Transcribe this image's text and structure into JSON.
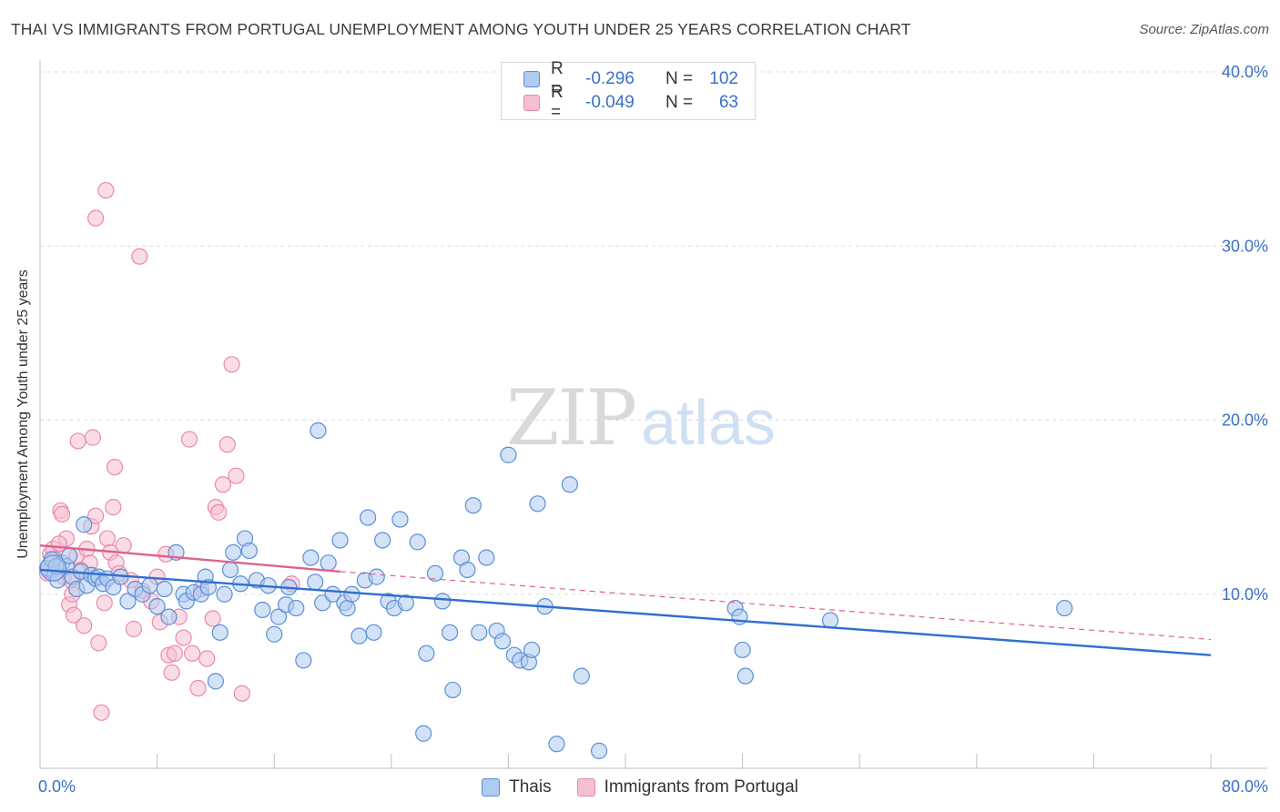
{
  "title": "THAI VS IMMIGRANTS FROM PORTUGAL UNEMPLOYMENT AMONG YOUTH UNDER 25 YEARS CORRELATION CHART",
  "source": "Source: ZipAtlas.com",
  "watermark": {
    "zip": "ZIP",
    "atlas": "atlas"
  },
  "legend": {
    "rows": [
      {
        "r_label": "R =",
        "r_value": "-0.296",
        "n_label": "N =",
        "n_value": "102"
      },
      {
        "r_label": "R =",
        "r_value": "-0.049",
        "n_label": "N =",
        "n_value": "63"
      }
    ],
    "bottom": [
      "Thais",
      "Immigrants from Portugal"
    ]
  },
  "colors": {
    "thais_fill": "#aecbf0",
    "thais_stroke": "#5b8fd6",
    "thais_line": "#2f6fcf",
    "portugal_fill": "#f6bfd1",
    "portugal_stroke": "#e88aab",
    "portugal_line": "#e0608c",
    "axis_text": "#3a70c7",
    "grid": "#dddddd"
  },
  "chart_data": {
    "type": "scatter",
    "title": "THAI VS IMMIGRANTS FROM PORTUGAL UNEMPLOYMENT AMONG YOUTH UNDER 25 YEARS CORRELATION CHART",
    "xlabel": "",
    "ylabel": "Unemployment Among Youth under 25 years",
    "xlim": [
      0,
      80
    ],
    "ylim": [
      0,
      40
    ],
    "x_tick_labels": [
      "0.0%",
      "80.0%"
    ],
    "y_ticks": [
      10,
      20,
      30,
      40
    ],
    "y_tick_labels": [
      "10.0%",
      "20.0%",
      "30.0%",
      "40.0%"
    ],
    "grid": true,
    "series": [
      {
        "name": "Thais",
        "r": -0.296,
        "n": 102,
        "trend": {
          "x0": 0,
          "y0": 11.4,
          "x1": 80,
          "y1": 6.5
        },
        "points": [
          [
            0.5,
            11.5
          ],
          [
            0.8,
            12.0
          ],
          [
            1.0,
            11.2
          ],
          [
            1.2,
            10.8
          ],
          [
            1.5,
            11.8
          ],
          [
            1.8,
            11.6
          ],
          [
            2.0,
            12.2
          ],
          [
            2.2,
            11.0
          ],
          [
            2.5,
            10.3
          ],
          [
            2.8,
            11.3
          ],
          [
            3.0,
            14.0
          ],
          [
            3.2,
            10.5
          ],
          [
            3.5,
            11.1
          ],
          [
            3.8,
            10.9
          ],
          [
            4.0,
            11.0
          ],
          [
            4.3,
            10.6
          ],
          [
            4.6,
            10.9
          ],
          [
            5.0,
            10.4
          ],
          [
            5.5,
            11.0
          ],
          [
            6.0,
            9.6
          ],
          [
            6.5,
            10.3
          ],
          [
            7.0,
            10.0
          ],
          [
            7.5,
            10.5
          ],
          [
            8.0,
            9.3
          ],
          [
            8.5,
            10.3
          ],
          [
            8.8,
            8.7
          ],
          [
            9.3,
            12.4
          ],
          [
            9.8,
            10.0
          ],
          [
            10.0,
            9.6
          ],
          [
            10.5,
            10.1
          ],
          [
            11.0,
            10.0
          ],
          [
            11.3,
            11.0
          ],
          [
            11.5,
            10.4
          ],
          [
            12.0,
            5.0
          ],
          [
            12.3,
            7.8
          ],
          [
            12.6,
            10.0
          ],
          [
            13.0,
            11.4
          ],
          [
            13.2,
            12.4
          ],
          [
            13.7,
            10.6
          ],
          [
            14.0,
            13.2
          ],
          [
            14.3,
            12.5
          ],
          [
            14.8,
            10.8
          ],
          [
            15.2,
            9.1
          ],
          [
            15.6,
            10.5
          ],
          [
            16.0,
            7.7
          ],
          [
            16.3,
            8.7
          ],
          [
            16.8,
            9.4
          ],
          [
            17.0,
            10.4
          ],
          [
            17.5,
            9.2
          ],
          [
            18.0,
            6.2
          ],
          [
            18.5,
            12.1
          ],
          [
            18.8,
            10.7
          ],
          [
            19.0,
            19.4
          ],
          [
            19.3,
            9.5
          ],
          [
            19.7,
            11.8
          ],
          [
            20.0,
            10.0
          ],
          [
            20.5,
            13.1
          ],
          [
            20.8,
            9.5
          ],
          [
            21.0,
            9.2
          ],
          [
            21.3,
            10.0
          ],
          [
            21.8,
            7.6
          ],
          [
            22.2,
            10.8
          ],
          [
            22.4,
            14.4
          ],
          [
            22.8,
            7.8
          ],
          [
            23.0,
            11.0
          ],
          [
            23.4,
            13.1
          ],
          [
            23.8,
            9.6
          ],
          [
            24.2,
            9.2
          ],
          [
            24.6,
            14.3
          ],
          [
            25.0,
            9.5
          ],
          [
            25.8,
            13.0
          ],
          [
            26.4,
            6.6
          ],
          [
            26.2,
            2.0
          ],
          [
            27.0,
            11.2
          ],
          [
            27.5,
            9.6
          ],
          [
            28.0,
            7.8
          ],
          [
            28.2,
            4.5
          ],
          [
            28.8,
            12.1
          ],
          [
            29.2,
            11.4
          ],
          [
            29.6,
            15.1
          ],
          [
            30.0,
            7.8
          ],
          [
            30.5,
            12.1
          ],
          [
            31.2,
            7.9
          ],
          [
            31.6,
            7.3
          ],
          [
            32.0,
            18.0
          ],
          [
            32.4,
            6.5
          ],
          [
            32.8,
            6.2
          ],
          [
            33.4,
            6.1
          ],
          [
            33.6,
            6.8
          ],
          [
            34.0,
            15.2
          ],
          [
            34.5,
            9.3
          ],
          [
            35.3,
            1.4
          ],
          [
            36.2,
            16.3
          ],
          [
            37.0,
            5.3
          ],
          [
            38.2,
            1.0
          ],
          [
            47.5,
            9.2
          ],
          [
            47.8,
            8.7
          ],
          [
            48.0,
            6.8
          ],
          [
            48.2,
            5.3
          ],
          [
            54.0,
            8.5
          ],
          [
            70.0,
            9.2
          ],
          [
            1.1,
            11.6
          ]
        ]
      },
      {
        "name": "Immigrants from Portugal",
        "r": -0.049,
        "n": 63,
        "trend": {
          "x0": 0,
          "y0": 12.8,
          "x1": 20.5,
          "y1": 11.3,
          "x1_dashed": 80,
          "y1_dashed": 7.4
        },
        "points": [
          [
            0.5,
            11.2
          ],
          [
            0.7,
            12.3
          ],
          [
            0.9,
            12.6
          ],
          [
            1.0,
            12.0
          ],
          [
            1.2,
            11.5
          ],
          [
            1.4,
            14.8
          ],
          [
            1.5,
            14.6
          ],
          [
            1.6,
            11.0
          ],
          [
            1.8,
            13.2
          ],
          [
            2.0,
            9.4
          ],
          [
            2.2,
            10.0
          ],
          [
            2.3,
            8.8
          ],
          [
            2.5,
            12.2
          ],
          [
            2.6,
            18.8
          ],
          [
            2.8,
            11.4
          ],
          [
            3.0,
            8.2
          ],
          [
            3.2,
            12.6
          ],
          [
            3.4,
            11.8
          ],
          [
            3.5,
            13.9
          ],
          [
            3.6,
            19.0
          ],
          [
            3.8,
            14.5
          ],
          [
            4.0,
            7.2
          ],
          [
            4.2,
            3.2
          ],
          [
            4.4,
            9.5
          ],
          [
            4.6,
            13.2
          ],
          [
            4.8,
            12.4
          ],
          [
            5.0,
            15.0
          ],
          [
            5.1,
            17.3
          ],
          [
            5.2,
            11.8
          ],
          [
            5.4,
            11.2
          ],
          [
            5.7,
            12.8
          ],
          [
            6.2,
            10.8
          ],
          [
            6.4,
            8.0
          ],
          [
            6.8,
            29.4
          ],
          [
            7.0,
            10.2
          ],
          [
            7.6,
            9.6
          ],
          [
            8.0,
            11.0
          ],
          [
            8.2,
            8.4
          ],
          [
            8.6,
            12.3
          ],
          [
            8.8,
            6.5
          ],
          [
            9.0,
            5.5
          ],
          [
            9.2,
            6.6
          ],
          [
            9.8,
            7.5
          ],
          [
            10.2,
            18.9
          ],
          [
            10.4,
            6.6
          ],
          [
            10.8,
            4.6
          ],
          [
            11.0,
            10.3
          ],
          [
            11.4,
            6.3
          ],
          [
            11.8,
            8.6
          ],
          [
            12.0,
            15.0
          ],
          [
            12.2,
            14.7
          ],
          [
            12.5,
            16.3
          ],
          [
            12.8,
            18.6
          ],
          [
            13.1,
            23.2
          ],
          [
            13.4,
            16.8
          ],
          [
            13.8,
            4.3
          ],
          [
            3.8,
            31.6
          ],
          [
            4.5,
            33.2
          ],
          [
            2.1,
            10.8
          ],
          [
            1.3,
            12.9
          ],
          [
            9.5,
            8.7
          ],
          [
            17.2,
            10.6
          ],
          [
            0.6,
            11.4
          ]
        ]
      }
    ]
  }
}
